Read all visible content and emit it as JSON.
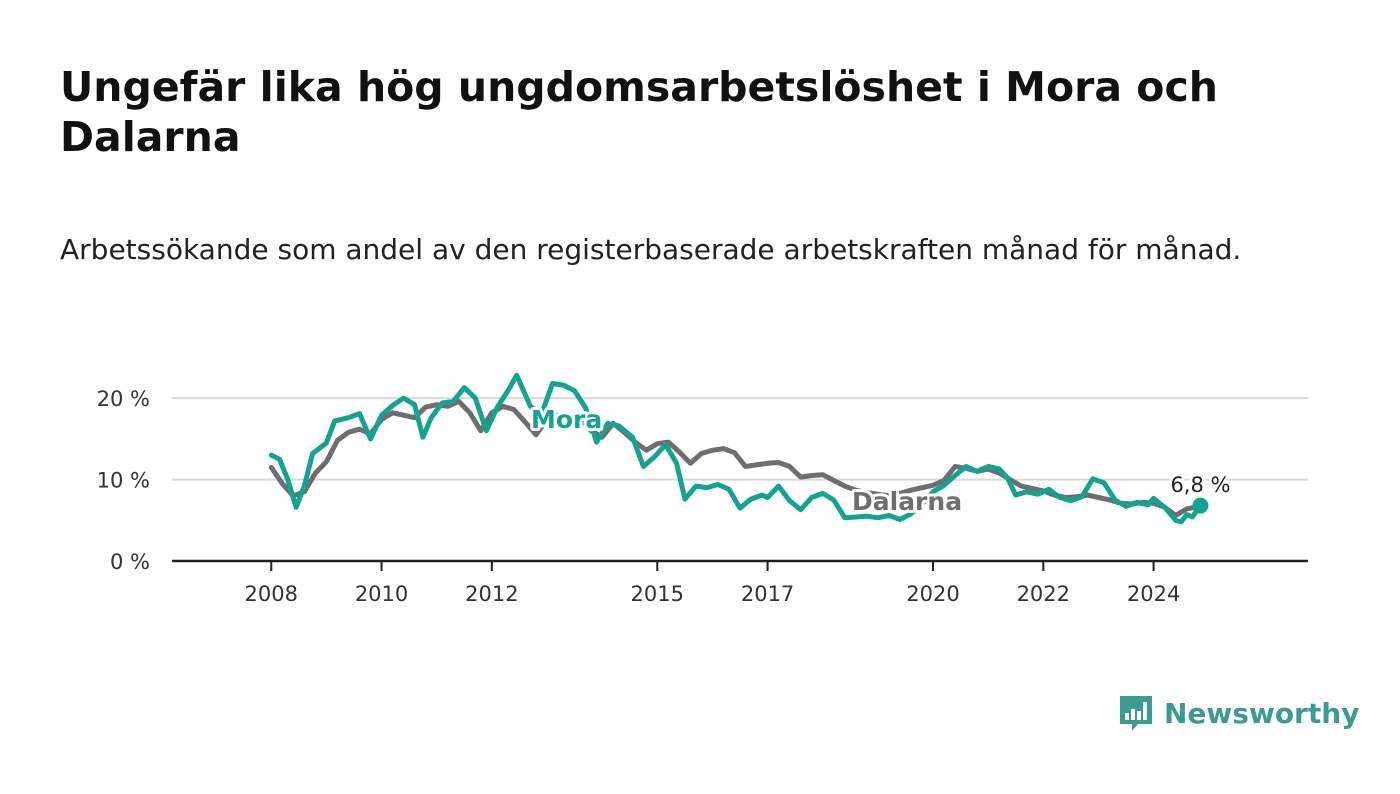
{
  "title": "Ungefär lika hög ungdomsarbetslöshet i Mora och Dalarna",
  "subtitle": "Arbetssökande som andel av den registerbaserade arbetskraften månad för månad.",
  "logo_text": "Newsworthy",
  "colors": {
    "mora": "#13a391",
    "dalarna": "#6e6e70",
    "grid": "#d9d9d9",
    "axis": "#222222",
    "logo": "#3a9b93"
  },
  "chart_data": {
    "type": "line",
    "x_ticks": [
      2008,
      2010,
      2012,
      2015,
      2017,
      2020,
      2022,
      2024
    ],
    "y_ticks": [
      0,
      10,
      20
    ],
    "y_tick_labels": [
      "0 %",
      "10 %",
      "20 %"
    ],
    "xlim": [
      2006.2,
      2026.8
    ],
    "ylim": [
      0,
      21
    ],
    "end_label": "6,8 %",
    "series": [
      {
        "name": "Dalarna",
        "key": "dalarna",
        "points": [
          [
            2008.0,
            11.5
          ],
          [
            2008.2,
            9.5
          ],
          [
            2008.4,
            8.0
          ],
          [
            2008.6,
            8.5
          ],
          [
            2008.8,
            10.8
          ],
          [
            2009.0,
            12.2
          ],
          [
            2009.2,
            14.8
          ],
          [
            2009.4,
            15.8
          ],
          [
            2009.6,
            16.2
          ],
          [
            2009.8,
            15.6
          ],
          [
            2010.0,
            17.4
          ],
          [
            2010.2,
            18.2
          ],
          [
            2010.4,
            17.9
          ],
          [
            2010.6,
            17.6
          ],
          [
            2010.8,
            18.9
          ],
          [
            2011.0,
            19.2
          ],
          [
            2011.2,
            19.0
          ],
          [
            2011.4,
            19.6
          ],
          [
            2011.6,
            18.2
          ],
          [
            2011.8,
            16.0
          ],
          [
            2012.0,
            18.2
          ],
          [
            2012.2,
            19.0
          ],
          [
            2012.4,
            18.6
          ],
          [
            2012.6,
            17.1
          ],
          [
            2012.8,
            15.5
          ],
          [
            2013.0,
            17.4
          ],
          [
            2013.2,
            17.9
          ],
          [
            2013.4,
            17.8
          ],
          [
            2013.6,
            17.5
          ],
          [
            2013.8,
            16.0
          ],
          [
            2014.0,
            15.2
          ],
          [
            2014.2,
            16.9
          ],
          [
            2014.4,
            15.8
          ],
          [
            2014.6,
            14.6
          ],
          [
            2014.8,
            13.6
          ],
          [
            2015.0,
            14.4
          ],
          [
            2015.2,
            14.6
          ],
          [
            2015.4,
            13.4
          ],
          [
            2015.6,
            12.0
          ],
          [
            2015.8,
            13.2
          ],
          [
            2016.0,
            13.6
          ],
          [
            2016.2,
            13.8
          ],
          [
            2016.4,
            13.3
          ],
          [
            2016.6,
            11.6
          ],
          [
            2016.8,
            11.8
          ],
          [
            2017.0,
            12.0
          ],
          [
            2017.2,
            12.1
          ],
          [
            2017.4,
            11.6
          ],
          [
            2017.6,
            10.3
          ],
          [
            2017.8,
            10.5
          ],
          [
            2018.0,
            10.6
          ],
          [
            2018.2,
            9.9
          ],
          [
            2018.4,
            9.2
          ],
          [
            2018.6,
            8.7
          ],
          [
            2018.8,
            8.4
          ],
          [
            2019.0,
            8.2
          ],
          [
            2019.2,
            8.0
          ],
          [
            2019.4,
            8.3
          ],
          [
            2019.6,
            8.7
          ],
          [
            2019.8,
            9.0
          ],
          [
            2020.0,
            9.3
          ],
          [
            2020.2,
            9.9
          ],
          [
            2020.4,
            11.6
          ],
          [
            2020.6,
            11.4
          ],
          [
            2020.8,
            11.0
          ],
          [
            2021.0,
            11.3
          ],
          [
            2021.2,
            10.8
          ],
          [
            2021.4,
            10.0
          ],
          [
            2021.6,
            9.2
          ],
          [
            2021.8,
            8.9
          ],
          [
            2022.0,
            8.6
          ],
          [
            2022.2,
            8.1
          ],
          [
            2022.4,
            7.8
          ],
          [
            2022.6,
            7.9
          ],
          [
            2022.8,
            8.1
          ],
          [
            2023.0,
            7.8
          ],
          [
            2023.2,
            7.5
          ],
          [
            2023.4,
            7.1
          ],
          [
            2023.6,
            7.0
          ],
          [
            2023.8,
            7.2
          ],
          [
            2024.0,
            7.1
          ],
          [
            2024.2,
            6.6
          ],
          [
            2024.4,
            5.6
          ],
          [
            2024.6,
            6.4
          ],
          [
            2024.75,
            6.6
          ]
        ]
      },
      {
        "name": "Mora",
        "key": "mora",
        "points": [
          [
            2008.0,
            13.0
          ],
          [
            2008.15,
            12.5
          ],
          [
            2008.3,
            10.0
          ],
          [
            2008.45,
            6.6
          ],
          [
            2008.6,
            9.2
          ],
          [
            2008.75,
            13.2
          ],
          [
            2009.0,
            14.5
          ],
          [
            2009.15,
            17.2
          ],
          [
            2009.4,
            17.6
          ],
          [
            2009.6,
            18.1
          ],
          [
            2009.8,
            15.0
          ],
          [
            2010.0,
            17.9
          ],
          [
            2010.2,
            19.1
          ],
          [
            2010.4,
            20.0
          ],
          [
            2010.6,
            19.2
          ],
          [
            2010.75,
            15.2
          ],
          [
            2010.9,
            17.6
          ],
          [
            2011.1,
            19.4
          ],
          [
            2011.3,
            19.6
          ],
          [
            2011.5,
            21.3
          ],
          [
            2011.7,
            20.0
          ],
          [
            2011.9,
            16.0
          ],
          [
            2012.1,
            18.9
          ],
          [
            2012.3,
            21.0
          ],
          [
            2012.45,
            22.8
          ],
          [
            2012.7,
            19.0
          ],
          [
            2012.9,
            18.0
          ],
          [
            2013.1,
            21.8
          ],
          [
            2013.3,
            21.6
          ],
          [
            2013.5,
            20.9
          ],
          [
            2013.7,
            18.8
          ],
          [
            2013.9,
            14.6
          ],
          [
            2014.1,
            16.9
          ],
          [
            2014.3,
            16.6
          ],
          [
            2014.55,
            15.2
          ],
          [
            2014.75,
            11.6
          ],
          [
            2014.95,
            12.8
          ],
          [
            2015.15,
            14.3
          ],
          [
            2015.35,
            12.0
          ],
          [
            2015.5,
            7.6
          ],
          [
            2015.7,
            9.2
          ],
          [
            2015.9,
            9.0
          ],
          [
            2016.1,
            9.4
          ],
          [
            2016.3,
            8.8
          ],
          [
            2016.5,
            6.5
          ],
          [
            2016.7,
            7.6
          ],
          [
            2016.9,
            8.1
          ],
          [
            2017.0,
            7.8
          ],
          [
            2017.2,
            9.2
          ],
          [
            2017.4,
            7.4
          ],
          [
            2017.6,
            6.3
          ],
          [
            2017.8,
            7.8
          ],
          [
            2018.0,
            8.3
          ],
          [
            2018.2,
            7.5
          ],
          [
            2018.4,
            5.3
          ],
          [
            2018.6,
            5.4
          ],
          [
            2018.8,
            5.5
          ],
          [
            2019.0,
            5.3
          ],
          [
            2019.2,
            5.6
          ],
          [
            2019.4,
            5.1
          ],
          [
            2019.6,
            5.8
          ],
          [
            2019.8,
            7.0
          ],
          [
            2020.0,
            8.5
          ],
          [
            2020.2,
            9.3
          ],
          [
            2020.4,
            10.5
          ],
          [
            2020.6,
            11.6
          ],
          [
            2020.8,
            11.0
          ],
          [
            2021.0,
            11.6
          ],
          [
            2021.2,
            11.3
          ],
          [
            2021.35,
            10.2
          ],
          [
            2021.5,
            8.1
          ],
          [
            2021.7,
            8.5
          ],
          [
            2021.9,
            8.2
          ],
          [
            2022.1,
            8.8
          ],
          [
            2022.3,
            7.8
          ],
          [
            2022.5,
            7.4
          ],
          [
            2022.7,
            7.9
          ],
          [
            2022.9,
            10.1
          ],
          [
            2023.1,
            9.6
          ],
          [
            2023.3,
            7.5
          ],
          [
            2023.5,
            6.7
          ],
          [
            2023.7,
            7.2
          ],
          [
            2023.9,
            6.9
          ],
          [
            2024.0,
            7.7
          ],
          [
            2024.2,
            6.6
          ],
          [
            2024.4,
            5.0
          ],
          [
            2024.5,
            4.8
          ],
          [
            2024.6,
            5.7
          ],
          [
            2024.7,
            5.4
          ],
          [
            2024.85,
            6.8
          ]
        ]
      }
    ],
    "labels": {
      "mora": "Mora",
      "dalarna": "Dalarna"
    }
  }
}
